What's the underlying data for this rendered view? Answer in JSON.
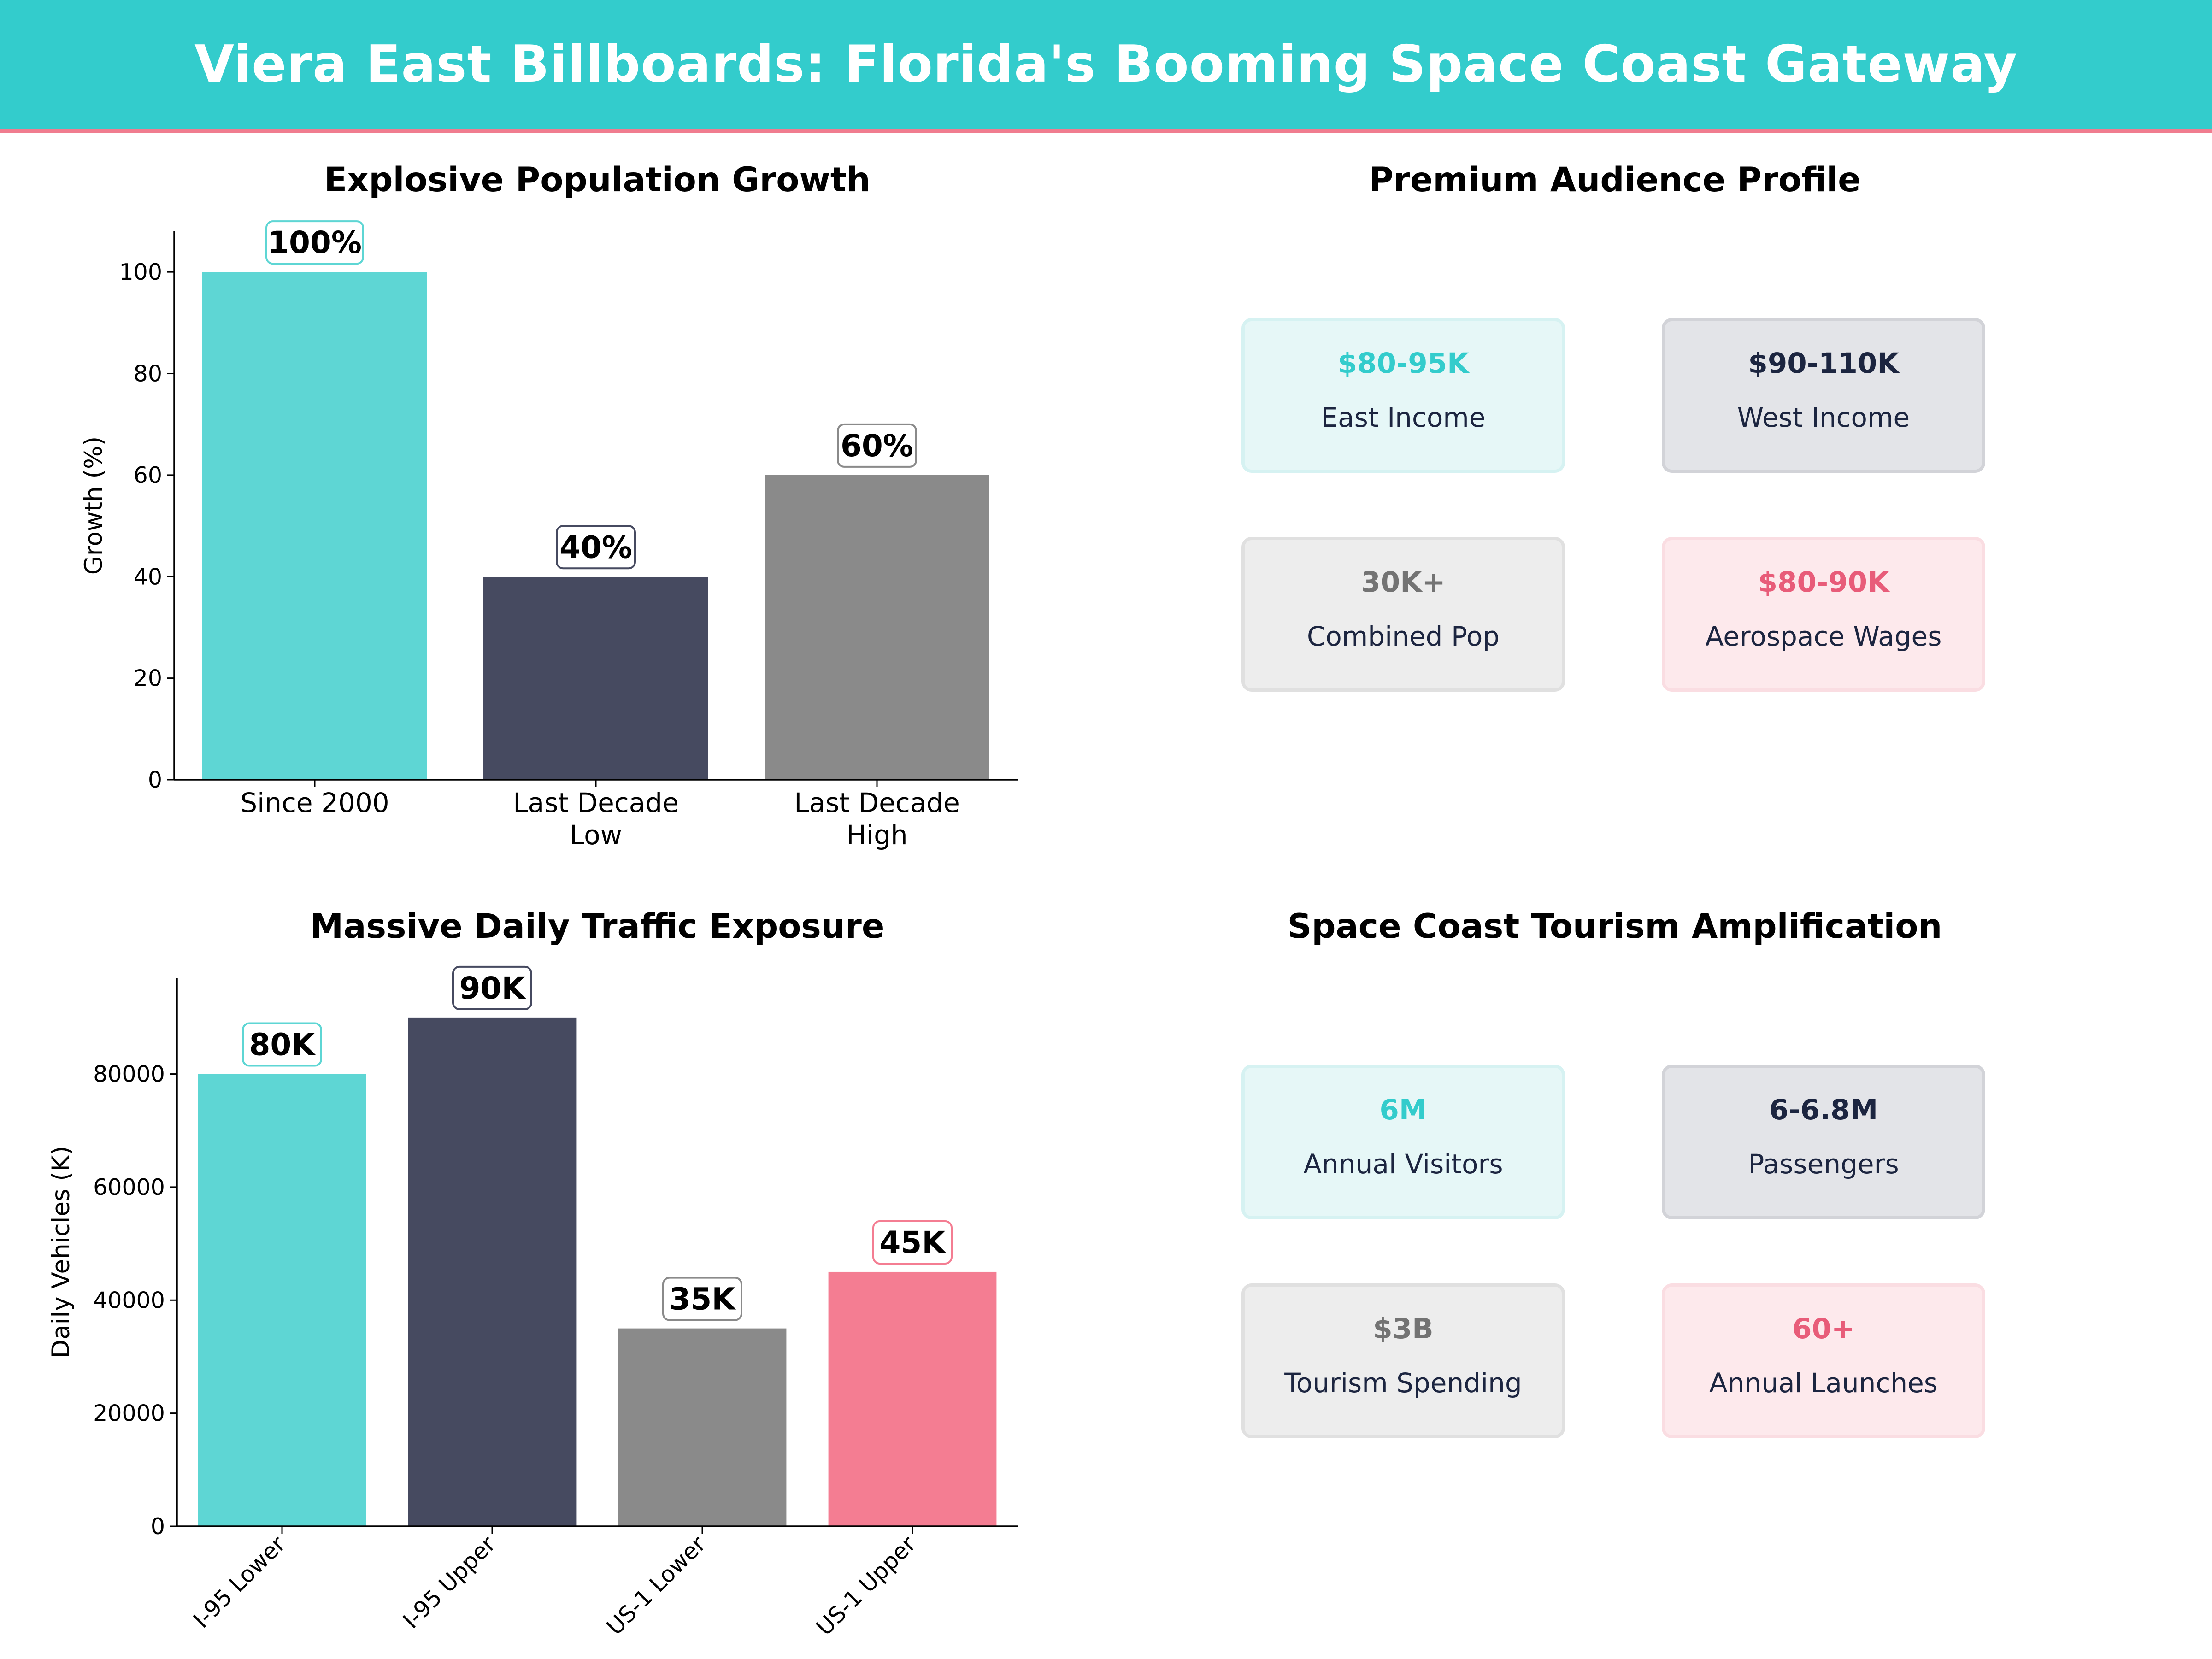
{
  "header": {
    "title": "Viera East Billboards: Florida's Booming Space Coast Gateway"
  },
  "colors": {
    "teal": "#5ED6D4",
    "navy": "#464A60",
    "gray": "#8A8A8A",
    "pink": "#F47D92",
    "banner": "#33CCCC"
  },
  "chart_data": [
    {
      "type": "bar",
      "title": "Explosive Population Growth",
      "ylabel": "Growth (%)",
      "xlabel": "",
      "categories": [
        [
          "Since 2000"
        ],
        [
          "Last Decade",
          "Low"
        ],
        [
          "Last Decade",
          "High"
        ]
      ],
      "values": [
        100,
        40,
        60
      ],
      "data_labels": [
        "100%",
        "40%",
        "60%"
      ],
      "ylim": [
        0,
        108
      ],
      "yticks": [
        0,
        20,
        40,
        60,
        80,
        100
      ],
      "bar_colors": [
        "#5ED6D4",
        "#464A60",
        "#8A8A8A"
      ],
      "label_border_colors": [
        "#5ED6D4",
        "#464A60",
        "#8A8A8A"
      ],
      "grid": false
    },
    {
      "type": "bar",
      "title": "Massive Daily Traffic Exposure",
      "ylabel": "Daily Vehicles (K)",
      "xlabel": "",
      "categories": [
        "I-95 Lower",
        "I-95 Upper",
        "US-1 Lower",
        "US-1 Upper"
      ],
      "values": [
        80000,
        90000,
        35000,
        45000
      ],
      "data_labels": [
        "80K",
        "90K",
        "35K",
        "45K"
      ],
      "ylim": [
        0,
        97000
      ],
      "yticks": [
        0,
        20000,
        40000,
        60000,
        80000
      ],
      "bar_colors": [
        "#5ED6D4",
        "#464A60",
        "#8A8A8A",
        "#F47D92"
      ],
      "label_border_colors": [
        "#5ED6D4",
        "#464A60",
        "#8A8A8A",
        "#F47D92"
      ],
      "grid": false
    }
  ],
  "audience": {
    "title": "Premium Audience Profile",
    "cards": [
      {
        "value": "$80-95K",
        "label": "East Income",
        "value_color": "#33CCCC",
        "bg": "#E6F7F7",
        "border": "#D6F2F2"
      },
      {
        "value": "$90-110K",
        "label": "West Income",
        "value_color": "#1C2540",
        "bg": "#E3E4E8",
        "border": "#D2D3D8"
      },
      {
        "value": "30K+",
        "label": "Combined Pop",
        "value_color": "#737373",
        "bg": "#EDEDED",
        "border": "#E0E0E0"
      },
      {
        "value": "$80-90K",
        "label": "Aerospace Wages",
        "value_color": "#E85C79",
        "bg": "#FDE9EC",
        "border": "#FADDE2"
      }
    ]
  },
  "tourism": {
    "title": "Space Coast Tourism Amplification",
    "cards": [
      {
        "value": "6M",
        "label": "Annual Visitors",
        "value_color": "#33CCCC",
        "bg": "#E6F7F7",
        "border": "#D6F2F2"
      },
      {
        "value": "6-6.8M",
        "label": "Passengers",
        "value_color": "#1C2540",
        "bg": "#E3E4E8",
        "border": "#D2D3D8"
      },
      {
        "value": "$3B",
        "label": "Tourism Spending",
        "value_color": "#737373",
        "bg": "#EDEDED",
        "border": "#E0E0E0"
      },
      {
        "value": "60+",
        "label": "Annual Launches",
        "value_color": "#E85C79",
        "bg": "#FDE9EC",
        "border": "#FADDE2"
      }
    ]
  }
}
